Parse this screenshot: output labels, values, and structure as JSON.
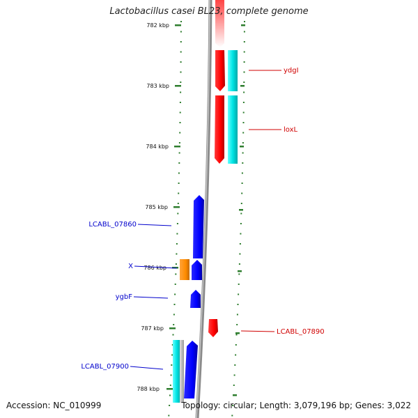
{
  "title": "Lactobacillus casei BL23, complete genome",
  "footer": {
    "accession": "Accession: NC_010999",
    "summary": "Topology: circular; Length: 3,079,196 bp; Genes: 3,022"
  },
  "colors": {
    "forward_cds": "#ff0000",
    "reverse_cds": "#0000ff",
    "rna_cyan": "#00e5e5",
    "orange_feature": "#ff8c00",
    "tick_green": "#2e7d2e",
    "backbone": "#888888"
  },
  "ticks": [
    {
      "label": "782 kbp"
    },
    {
      "label": "783 kbp"
    },
    {
      "label": "784 kbp"
    },
    {
      "label": "785 kbp"
    },
    {
      "label": "786 kbp"
    },
    {
      "label": "787 kbp"
    },
    {
      "label": "788 kbp"
    }
  ],
  "gene_labels": [
    {
      "text": "ydgI",
      "strand": "forward"
    },
    {
      "text": "loxL",
      "strand": "forward"
    },
    {
      "text": "LCABL_07860",
      "strand": "reverse"
    },
    {
      "text": "X",
      "strand": "reverse"
    },
    {
      "text": "ygbF",
      "strand": "reverse"
    },
    {
      "text": "LCABL_07890",
      "strand": "forward"
    },
    {
      "text": "LCABL_07900",
      "strand": "reverse"
    }
  ]
}
